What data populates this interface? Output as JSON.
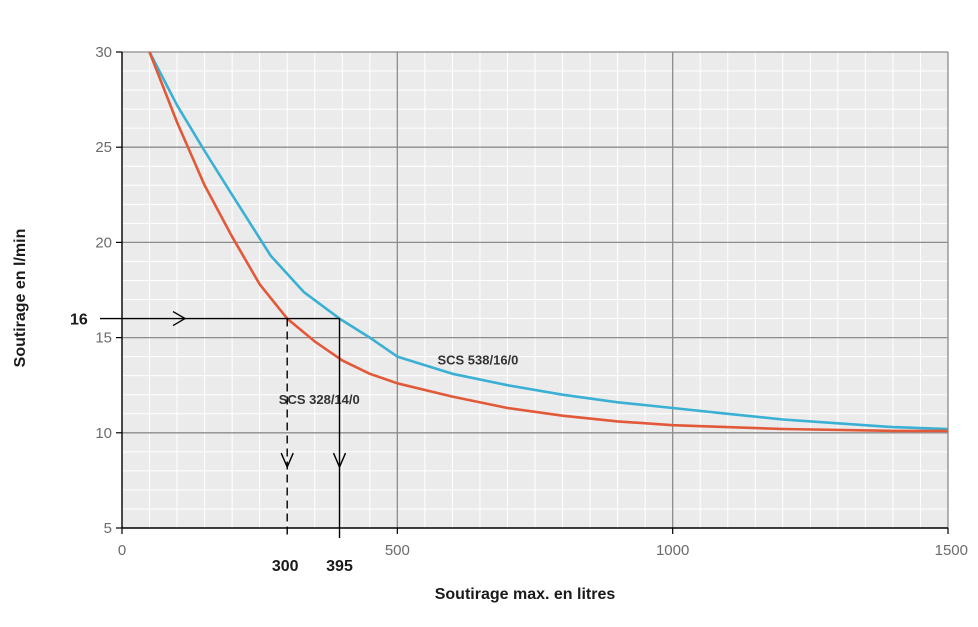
{
  "chart_data": {
    "type": "line",
    "title": "",
    "xlabel": "Soutirage max. en litres",
    "ylabel": "Soutirage en l/min",
    "xlim": [
      0,
      1500
    ],
    "ylim": [
      5,
      30
    ],
    "x_ticks": [
      0,
      500,
      1000,
      1500
    ],
    "y_ticks": [
      5,
      10,
      15,
      20,
      25,
      30
    ],
    "grid": true,
    "colors": {
      "plot_bg": "#ebebeb",
      "grid_major": "#8c8c8c",
      "grid_minor": "#ffffff",
      "axis": "#000000"
    },
    "series": [
      {
        "name": "SCS 538/16/0",
        "color": "#3ab0d4",
        "x": [
          50,
          100,
          150,
          200,
          270,
          330,
          395,
          450,
          500,
          600,
          700,
          800,
          900,
          1000,
          1100,
          1200,
          1300,
          1400,
          1500
        ],
        "y": [
          30,
          27.2,
          24.8,
          22.5,
          19.3,
          17.4,
          16,
          15,
          14,
          13.1,
          12.5,
          12.0,
          11.6,
          11.3,
          11.0,
          10.7,
          10.5,
          10.3,
          10.2
        ]
      },
      {
        "name": "SCS 328/14/0",
        "color": "#e2593a",
        "x": [
          50,
          100,
          150,
          200,
          250,
          300,
          350,
          400,
          450,
          500,
          600,
          700,
          800,
          900,
          1000,
          1200,
          1400,
          1500
        ],
        "y": [
          30,
          26.3,
          23.0,
          20.3,
          17.8,
          16,
          14.8,
          13.8,
          13.1,
          12.6,
          11.9,
          11.3,
          10.9,
          10.6,
          10.4,
          10.2,
          10.1,
          10.1
        ]
      }
    ],
    "annotations": {
      "y_marker": {
        "value": 16,
        "label": "16"
      },
      "x_markers": [
        {
          "value": 300,
          "label": "300",
          "style": "dashed"
        },
        {
          "value": 395,
          "label": "395",
          "style": "solid"
        }
      ]
    }
  }
}
